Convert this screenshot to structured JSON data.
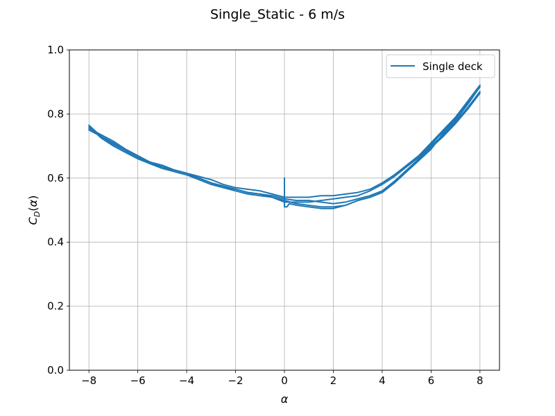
{
  "chart_data": {
    "type": "line",
    "title": "Single_Static - 6 m/s",
    "xlabel": "α",
    "ylabel": "C_D(α)",
    "xlim": [
      -8.8,
      8.8
    ],
    "ylim": [
      0.0,
      1.0
    ],
    "xticks": [
      -8,
      -6,
      -4,
      -2,
      0,
      2,
      4,
      6,
      8
    ],
    "xtick_labels": [
      "−8",
      "−6",
      "−4",
      "−2",
      "0",
      "2",
      "4",
      "6",
      "8"
    ],
    "yticks": [
      0.0,
      0.2,
      0.4,
      0.6,
      0.8,
      1.0
    ],
    "ytick_labels": [
      "0.0",
      "0.2",
      "0.4",
      "0.6",
      "0.8",
      "1.0"
    ],
    "grid": true,
    "legend_position": "upper right",
    "series_color": "#1f77b4",
    "series": [
      {
        "name": "Single deck",
        "sweeps": [
          {
            "x": [
              0.0,
              0.0,
              0.0,
              0.1,
              0.2,
              0.5,
              1.0,
              1.5,
              2.0,
              2.5,
              3.0,
              3.5,
              4.0,
              4.5,
              5.0,
              5.5,
              6.0,
              6.5,
              7.0,
              7.5,
              8.0
            ],
            "y": [
              0.6,
              0.54,
              0.51,
              0.51,
              0.52,
              0.515,
              0.51,
              0.505,
              0.505,
              0.515,
              0.53,
              0.54,
              0.555,
              0.585,
              0.62,
              0.655,
              0.69,
              0.74,
              0.78,
              0.83,
              0.885
            ]
          },
          {
            "x": [
              8.0,
              7.5,
              7.0,
              6.5,
              6.0,
              5.5,
              5.0,
              4.5,
              4.0,
              3.5,
              3.0,
              2.5,
              2.0,
              1.5,
              1.0,
              0.5,
              0.0,
              -0.5,
              -1.0,
              -1.5,
              -2.0,
              -2.5,
              -3.0,
              -3.5,
              -4.0,
              -4.5,
              -5.0,
              -5.5,
              -6.0,
              -6.5,
              -7.0,
              -7.5,
              -8.0
            ],
            "y": [
              0.89,
              0.84,
              0.79,
              0.75,
              0.71,
              0.67,
              0.64,
              0.61,
              0.585,
              0.565,
              0.555,
              0.55,
              0.545,
              0.545,
              0.54,
              0.54,
              0.54,
              0.55,
              0.56,
              0.565,
              0.57,
              0.58,
              0.595,
              0.605,
              0.615,
              0.625,
              0.64,
              0.65,
              0.665,
              0.685,
              0.705,
              0.73,
              0.765
            ]
          },
          {
            "x": [
              -8.0,
              -7.5,
              -7.0,
              -6.5,
              -6.0,
              -5.5,
              -5.0,
              -4.5,
              -4.0,
              -3.5,
              -3.0,
              -2.5,
              -2.0,
              -1.5,
              -1.0,
              -0.5,
              0.0,
              0.5,
              1.0,
              1.5,
              2.0,
              2.5,
              3.0,
              3.5,
              4.0,
              4.5,
              5.0,
              5.5,
              6.0,
              6.5,
              7.0,
              7.5,
              8.0
            ],
            "y": [
              0.755,
              0.735,
              0.715,
              0.69,
              0.67,
              0.65,
              0.635,
              0.625,
              0.615,
              0.6,
              0.585,
              0.575,
              0.565,
              0.555,
              0.55,
              0.545,
              0.535,
              0.53,
              0.53,
              0.525,
              0.52,
              0.525,
              0.535,
              0.545,
              0.56,
              0.59,
              0.625,
              0.66,
              0.7,
              0.735,
              0.775,
              0.82,
              0.87
            ]
          },
          {
            "x": [
              8.0,
              7.5,
              7.0,
              6.5,
              6.0,
              5.5,
              5.0,
              4.5,
              4.0,
              3.5,
              3.0,
              2.5,
              2.0,
              1.5,
              1.0,
              0.5,
              0.0,
              -0.5,
              -1.0,
              -1.5,
              -2.0,
              -2.5,
              -3.0,
              -3.5,
              -4.0,
              -4.5,
              -5.0,
              -5.5,
              -6.0,
              -6.5,
              -7.0,
              -7.5,
              -8.0
            ],
            "y": [
              0.885,
              0.835,
              0.785,
              0.745,
              0.705,
              0.665,
              0.635,
              0.605,
              0.58,
              0.56,
              0.545,
              0.54,
              0.535,
              0.53,
              0.525,
              0.525,
              0.525,
              0.54,
              0.55,
              0.555,
              0.565,
              0.57,
              0.585,
              0.6,
              0.61,
              0.62,
              0.635,
              0.645,
              0.66,
              0.68,
              0.7,
              0.725,
              0.76
            ]
          },
          {
            "x": [
              -8.0,
              -7.5,
              -7.0,
              -6.5,
              -6.0,
              -5.5,
              -5.0,
              -4.5,
              -4.0,
              -3.5,
              -3.0,
              -2.5,
              -2.0,
              -1.5,
              -1.0,
              -0.5,
              0.0,
              0.5,
              1.0,
              1.5,
              2.0,
              2.5,
              3.0,
              3.5,
              4.0,
              4.5,
              5.0,
              5.5,
              6.0,
              6.5,
              7.0,
              7.5,
              8.0
            ],
            "y": [
              0.75,
              0.73,
              0.71,
              0.685,
              0.665,
              0.645,
              0.63,
              0.62,
              0.61,
              0.595,
              0.58,
              0.57,
              0.56,
              0.55,
              0.545,
              0.54,
              0.53,
              0.52,
              0.515,
              0.51,
              0.51,
              0.515,
              0.53,
              0.54,
              0.555,
              0.585,
              0.62,
              0.655,
              0.695,
              0.73,
              0.77,
              0.815,
              0.865
            ]
          }
        ]
      }
    ]
  }
}
